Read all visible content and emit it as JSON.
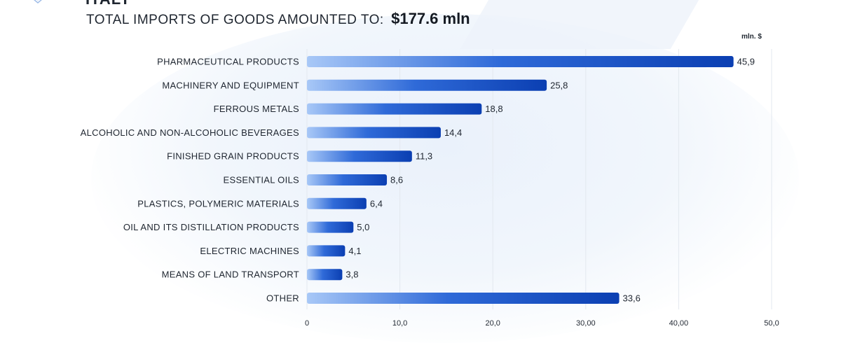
{
  "header": {
    "country": "ITALY",
    "label": "TOTAL IMPORTS OF GOODS AMOUNTED TO:",
    "value": "$177.6  mln"
  },
  "colors": {
    "bar_start": "#a8c8f7",
    "bar_mid": "#2f6ad8",
    "bar_end": "#0b3fb2",
    "grid": "#e3e8ef",
    "text": "#1f2630"
  },
  "chart_data": {
    "type": "bar",
    "orientation": "horizontal",
    "unit": "mln. $",
    "categories": [
      "PHARMACEUTICAL PRODUCTS",
      "MACHINERY AND EQUIPMENT",
      "FERROUS METALS",
      "ALCOHOLIC AND NON-ALCOHOLIC BEVERAGES",
      "FINISHED GRAIN PRODUCTS",
      "ESSENTIAL OILS",
      "PLASTICS, POLYMERIC MATERIALS",
      "OIL AND ITS DISTILLATION PRODUCTS",
      "ELECTRIC MACHINES",
      "MEANS OF LAND TRANSPORT",
      "OTHER"
    ],
    "values": [
      45.9,
      25.8,
      18.8,
      14.4,
      11.3,
      8.6,
      6.4,
      5.0,
      4.1,
      3.8,
      33.6
    ],
    "value_labels": [
      "45,9",
      "25,8",
      "18,8",
      "14,4",
      "11,3",
      "8,6",
      "6,4",
      "5,0",
      "4,1",
      "3,8",
      "33,6"
    ],
    "xlim": [
      0,
      50
    ],
    "x_ticks": [
      0,
      10,
      20,
      30,
      40,
      50
    ],
    "x_tick_labels": [
      "0",
      "10,0",
      "20,0",
      "30,00",
      "40,00",
      "50,0"
    ],
    "grid": true
  }
}
